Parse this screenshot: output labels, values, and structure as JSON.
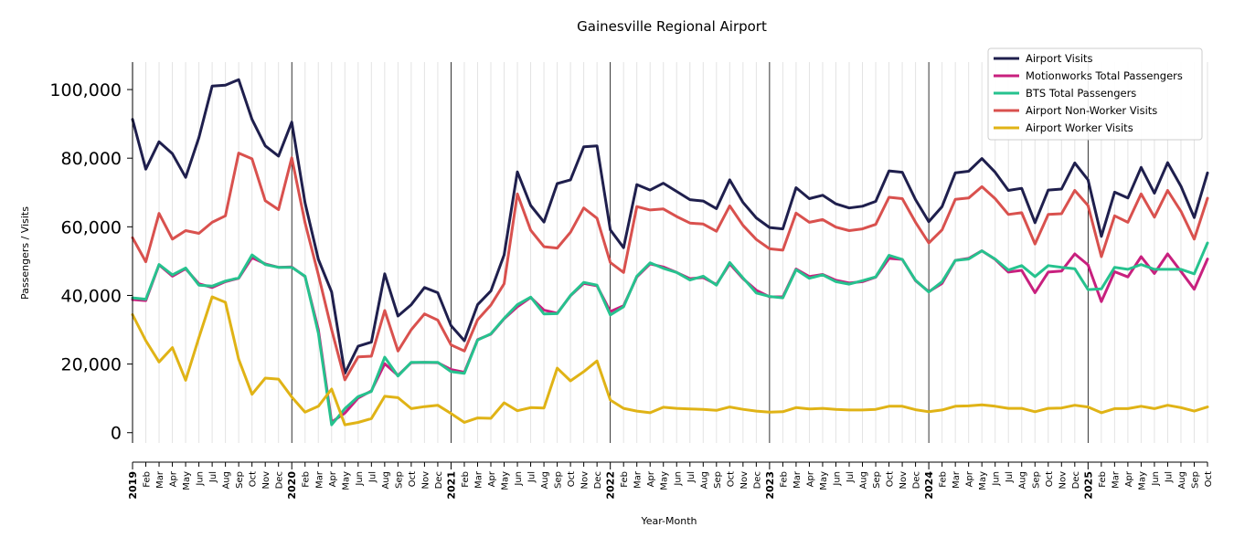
{
  "chart_data": {
    "type": "line",
    "title": "Gainesville Regional Airport",
    "xlabel": "Year-Month",
    "ylabel": "Passengers / Visits",
    "ylim": [
      -3000,
      108000
    ],
    "yticks": [
      0,
      20000,
      40000,
      60000,
      80000,
      100000
    ],
    "ytick_labels": [
      "0",
      "20,000",
      "40,000",
      "60,000",
      "80,000",
      "100,000"
    ],
    "grid": "vertical monthly lines, year boundaries darker",
    "legend_position": "top-right",
    "x": [
      "2019-01",
      "2019-02",
      "2019-03",
      "2019-04",
      "2019-05",
      "2019-06",
      "2019-07",
      "2019-08",
      "2019-09",
      "2019-10",
      "2019-11",
      "2019-12",
      "2020-01",
      "2020-02",
      "2020-03",
      "2020-04",
      "2020-05",
      "2020-06",
      "2020-07",
      "2020-08",
      "2020-09",
      "2020-10",
      "2020-11",
      "2020-12",
      "2021-01",
      "2021-02",
      "2021-03",
      "2021-04",
      "2021-05",
      "2021-06",
      "2021-07",
      "2021-08",
      "2021-09",
      "2021-10",
      "2021-11",
      "2021-12",
      "2022-01",
      "2022-02",
      "2022-03",
      "2022-04",
      "2022-05",
      "2022-06",
      "2022-07",
      "2022-08",
      "2022-09",
      "2022-10",
      "2022-11",
      "2022-12",
      "2023-01",
      "2023-02",
      "2023-03",
      "2023-04",
      "2023-05",
      "2023-06",
      "2023-07",
      "2023-08",
      "2023-09",
      "2023-10",
      "2023-11",
      "2023-12",
      "2024-01",
      "2024-02",
      "2024-03",
      "2024-04",
      "2024-05",
      "2024-06",
      "2024-07",
      "2024-08",
      "2024-09",
      "2024-10",
      "2024-11",
      "2024-12",
      "2025-01",
      "2025-02",
      "2025-03",
      "2025-04",
      "2025-05",
      "2025-06",
      "2025-07",
      "2025-08",
      "2025-09",
      "2025-10"
    ],
    "x_tick_labels": [
      "2019",
      "Feb",
      "Mar",
      "Apr",
      "May",
      "Jun",
      "Jul",
      "Aug",
      "Sep",
      "Oct",
      "Nov",
      "Dec",
      "2020",
      "Feb",
      "Mar",
      "Apr",
      "May",
      "Jun",
      "Jul",
      "Aug",
      "Sep",
      "Oct",
      "Nov",
      "Dec",
      "2021",
      "Feb",
      "Mar",
      "Apr",
      "May",
      "Jun",
      "Jul",
      "Aug",
      "Sep",
      "Oct",
      "Nov",
      "Dec",
      "2022",
      "Feb",
      "Mar",
      "Apr",
      "May",
      "Jun",
      "Jul",
      "Aug",
      "Sep",
      "Oct",
      "Nov",
      "Dec",
      "2023",
      "Feb",
      "Mar",
      "Apr",
      "May",
      "Jun",
      "Jul",
      "Aug",
      "Sep",
      "Oct",
      "Nov",
      "Dec",
      "2024",
      "Feb",
      "Mar",
      "Apr",
      "May",
      "Jun",
      "Jul",
      "Aug",
      "Sep",
      "Oct",
      "Nov",
      "Dec",
      "2025",
      "Feb",
      "Mar",
      "Apr",
      "May",
      "Jun",
      "Jul",
      "Aug",
      "Sep",
      "Oct"
    ],
    "series": [
      {
        "name": "Airport Visits",
        "color": "#1f1f4d",
        "values": [
          91300,
          76800,
          84800,
          81300,
          74400,
          86000,
          101000,
          101300,
          102900,
          91300,
          83600,
          80600,
          90500,
          67000,
          50500,
          41000,
          17300,
          25200,
          26400,
          46300,
          34000,
          37300,
          42300,
          40800,
          31200,
          26800,
          37300,
          41300,
          51800,
          76000,
          66200,
          61400,
          72600,
          73700,
          83300,
          83600,
          59100,
          53900,
          72300,
          70700,
          72700,
          70300,
          67900,
          67500,
          65300,
          73700,
          67100,
          62600,
          59800,
          59400,
          71400,
          68200,
          69200,
          66700,
          65500,
          66000,
          67400,
          76300,
          75900,
          67900,
          61500,
          65900,
          75700,
          76200,
          79900,
          75900,
          70600,
          71200,
          61200,
          70700,
          71000,
          78600,
          73700,
          57200,
          70100,
          68400,
          77300,
          69800,
          78700,
          71800,
          62700,
          75700
        ]
      },
      {
        "name": "Motionworks Total Passengers",
        "color": "#c8207e",
        "values": [
          38800,
          38500,
          48900,
          45600,
          47800,
          43400,
          42300,
          44000,
          45000,
          51000,
          49200,
          48200,
          48300,
          45500,
          30000,
          3100,
          5700,
          10100,
          12200,
          20100,
          16700,
          20400,
          20500,
          20400,
          18400,
          17600,
          27100,
          28700,
          33200,
          36700,
          39400,
          35700,
          34800,
          39900,
          43500,
          42800,
          35300,
          37000,
          45400,
          49200,
          48300,
          46700,
          44900,
          45200,
          43200,
          49200,
          44900,
          41500,
          39600,
          39600,
          47700,
          45500,
          46100,
          44400,
          43600,
          44000,
          45300,
          50800,
          50500,
          44300,
          41100,
          43500,
          50200,
          50800,
          53000,
          50500,
          46800,
          47300,
          40800,
          46800,
          47100,
          52100,
          48900,
          38200,
          46900,
          45400,
          51300,
          46400,
          52100,
          47000,
          41800,
          50600
        ]
      },
      {
        "name": "BTS Total Passengers",
        "color": "#26c28e",
        "values": [
          39300,
          38900,
          49000,
          46000,
          48000,
          43000,
          42700,
          44200,
          45100,
          51800,
          49000,
          48200,
          48200,
          45600,
          29000,
          2300,
          7000,
          10500,
          12000,
          22000,
          16500,
          20500,
          20500,
          20500,
          17800,
          17300,
          27000,
          28800,
          33300,
          37300,
          39500,
          34600,
          34700,
          40000,
          43800,
          43000,
          34300,
          36700,
          45600,
          49500,
          47900,
          46700,
          44500,
          45600,
          43000,
          49600,
          45100,
          40700,
          39700,
          39300,
          47500,
          45000,
          46000,
          44000,
          43300,
          44300,
          45400,
          51700,
          50500,
          44400,
          41000,
          44000,
          50200,
          50600,
          53000,
          50600,
          47400,
          48700,
          45500,
          48700,
          48200,
          47800,
          41700,
          41900,
          48200,
          47600,
          49000,
          47600,
          47600,
          47600,
          46300,
          55300
        ]
      },
      {
        "name": "Airport Non-Worker Visits",
        "color": "#d9514e",
        "values": [
          56800,
          49800,
          63900,
          56400,
          58900,
          58100,
          61300,
          63200,
          81500,
          79800,
          67600,
          65000,
          80100,
          61200,
          46000,
          30000,
          15400,
          22100,
          22300,
          35600,
          23800,
          30000,
          34600,
          32800,
          25600,
          23800,
          32900,
          37200,
          43400,
          69600,
          59000,
          54200,
          53800,
          58400,
          65500,
          62500,
          49600,
          46700,
          65900,
          64900,
          65200,
          63000,
          61100,
          60800,
          58700,
          66100,
          60400,
          56300,
          53600,
          53200,
          64000,
          61300,
          62100,
          59900,
          58900,
          59400,
          60700,
          68600,
          68200,
          61300,
          55300,
          59100,
          68000,
          68400,
          71700,
          68200,
          63600,
          64100,
          55000,
          63600,
          63800,
          70600,
          66200,
          51300,
          63200,
          61300,
          69600,
          62800,
          70600,
          64500,
          56400,
          68300
        ]
      },
      {
        "name": "Airport Worker Visits",
        "color": "#e0b316",
        "values": [
          34400,
          26800,
          20600,
          24800,
          15300,
          27700,
          39600,
          38000,
          21400,
          11200,
          15900,
          15600,
          10400,
          6000,
          7700,
          12700,
          2300,
          3000,
          4100,
          10600,
          10200,
          7000,
          7600,
          8000,
          5600,
          3000,
          4300,
          4200,
          8700,
          6400,
          7300,
          7200,
          18800,
          15100,
          17800,
          20900,
          9500,
          7100,
          6300,
          5800,
          7400,
          7100,
          6900,
          6800,
          6500,
          7500,
          6800,
          6300,
          6000,
          6100,
          7300,
          6900,
          7100,
          6800,
          6600,
          6600,
          6800,
          7700,
          7700,
          6700,
          6100,
          6600,
          7700,
          7800,
          8100,
          7700,
          7100,
          7100,
          6100,
          7100,
          7200,
          8000,
          7500,
          5800,
          7000,
          7000,
          7700,
          7000,
          8000,
          7300,
          6300,
          7500
        ]
      }
    ]
  }
}
